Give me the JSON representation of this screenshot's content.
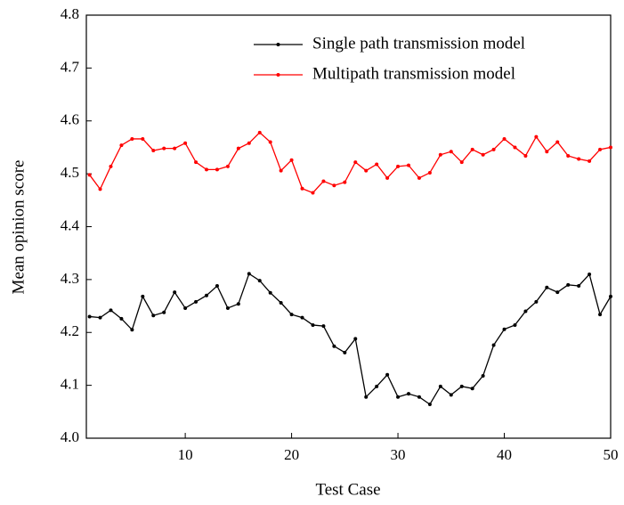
{
  "chart_data": {
    "type": "line",
    "xlabel": "Test Case",
    "ylabel": "Mean opinion score",
    "x": [
      1,
      2,
      3,
      4,
      5,
      6,
      7,
      8,
      9,
      10,
      11,
      12,
      13,
      14,
      15,
      16,
      17,
      18,
      19,
      20,
      21,
      22,
      23,
      24,
      25,
      26,
      27,
      28,
      29,
      30,
      31,
      32,
      33,
      34,
      35,
      36,
      37,
      38,
      39,
      40,
      41,
      42,
      43,
      44,
      45,
      46,
      47,
      48,
      49,
      50
    ],
    "series": [
      {
        "name": "Single path transmission model",
        "color": "#000000",
        "values": [
          4.23,
          4.228,
          4.242,
          4.226,
          4.205,
          4.268,
          4.232,
          4.238,
          4.276,
          4.246,
          4.258,
          4.27,
          4.288,
          4.246,
          4.254,
          4.311,
          4.298,
          4.275,
          4.256,
          4.234,
          4.228,
          4.214,
          4.212,
          4.174,
          4.162,
          4.188,
          4.078,
          4.098,
          4.12,
          4.078,
          4.084,
          4.078,
          4.064,
          4.098,
          4.082,
          4.098,
          4.094,
          4.118,
          4.176,
          4.206,
          4.214,
          4.24,
          4.258,
          4.285,
          4.276,
          4.29,
          4.288,
          4.31,
          4.234,
          4.268
        ]
      },
      {
        "name": "Multipath transmission model",
        "color": "#ff0000",
        "values": [
          4.498,
          4.471,
          4.514,
          4.554,
          4.566,
          4.566,
          4.544,
          4.548,
          4.548,
          4.558,
          4.522,
          4.508,
          4.508,
          4.514,
          4.548,
          4.558,
          4.578,
          4.56,
          4.506,
          4.526,
          4.472,
          4.464,
          4.486,
          4.478,
          4.484,
          4.522,
          4.506,
          4.518,
          4.492,
          4.514,
          4.516,
          4.492,
          4.502,
          4.536,
          4.542,
          4.522,
          4.546,
          4.536,
          4.546,
          4.566,
          4.55,
          4.534,
          4.57,
          4.542,
          4.56,
          4.534,
          4.528,
          4.524,
          4.546,
          4.55
        ]
      }
    ],
    "xlim": [
      0.7,
      50
    ],
    "xticks": [
      10,
      20,
      30,
      40,
      50
    ],
    "ylim": [
      4.0,
      4.8
    ],
    "yticks": [
      {
        "value": 4,
        "label": "4.0"
      },
      4.1,
      4.2,
      4.3,
      4.4,
      4.5,
      4.6,
      4.7,
      4.8
    ],
    "legend": "upper right",
    "grid": false
  }
}
